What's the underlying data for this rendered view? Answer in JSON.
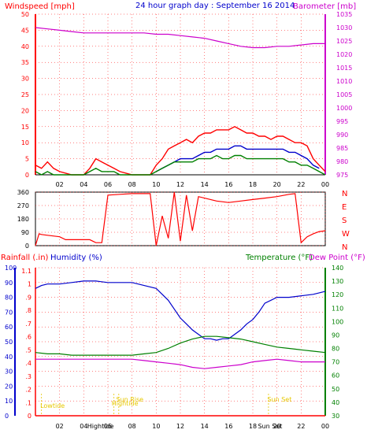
{
  "title": "24 hour graph day : September 16 2014",
  "colors": {
    "wind": "#ff0000",
    "gust_mid": "#0000cc",
    "wind_avg": "#008000",
    "baro": "#cc00cc",
    "dir": "#ff0000",
    "humidity": "#0000cc",
    "temperature": "#008000",
    "dewpoint": "#cc00cc",
    "rain": "#ff0000",
    "astro": "#e6c800",
    "grid": "#ff0000",
    "frame": "#000000"
  },
  "chart_data": [
    {
      "type": "line",
      "name": "wind-baro-panel",
      "left_label": "Windspeed [mph]",
      "right_label": "Barometer [mb]",
      "x_tick_labels": [
        "02",
        "04",
        "06",
        "08",
        "10",
        "12",
        "14",
        "16",
        "18",
        "20",
        "22",
        "00"
      ],
      "y_left_ticks": [
        "0",
        "5",
        "10",
        "15",
        "20",
        "25",
        "30",
        "35",
        "40",
        "45",
        "50"
      ],
      "y_right_ticks": [
        "975",
        "980",
        "985",
        "990",
        "995",
        "1000",
        "1005",
        "1010",
        "1015",
        "1020",
        "1025",
        "1030",
        "1035"
      ],
      "ylim_left": [
        0,
        50
      ],
      "ylim_right": [
        975,
        1035
      ],
      "series": [
        {
          "key": "wind_gust_upper",
          "x": [
            0,
            0.5,
            1,
            1.5,
            2,
            3,
            4,
            4.5,
            5,
            5.5,
            6,
            6.5,
            7,
            8,
            9,
            9.5,
            10,
            10.5,
            11,
            11.5,
            12,
            12.5,
            13,
            13.5,
            14,
            14.5,
            15,
            15.5,
            16,
            16.5,
            17,
            17.5,
            18,
            18.5,
            19,
            19.5,
            20,
            20.5,
            21,
            21.5,
            22,
            22.5,
            23,
            23.5,
            24
          ],
          "values": [
            3,
            2,
            4,
            2,
            1,
            0,
            0,
            2,
            5,
            4,
            3,
            2,
            1,
            0,
            0,
            0,
            3,
            5,
            8,
            9,
            10,
            11,
            10,
            12,
            13,
            13,
            14,
            14,
            14,
            15,
            14,
            13,
            13,
            12,
            12,
            11,
            12,
            12,
            11,
            10,
            10,
            9,
            5,
            3,
            1
          ]
        },
        {
          "key": "wind_mid",
          "x": [
            10,
            10.5,
            11,
            11.5,
            12,
            12.5,
            13,
            13.5,
            14,
            14.5,
            15,
            15.5,
            16,
            16.5,
            17,
            17.5,
            18,
            18.5,
            19,
            19.5,
            20,
            20.5,
            21,
            21.5,
            22,
            22.5,
            23,
            23.5
          ],
          "values": [
            1,
            2,
            3,
            4,
            5,
            5,
            5,
            6,
            7,
            7,
            8,
            8,
            8,
            9,
            9,
            8,
            8,
            8,
            8,
            8,
            8,
            8,
            7,
            7,
            6,
            5,
            3,
            2
          ]
        },
        {
          "key": "wind_avg",
          "x": [
            0,
            0.5,
            1,
            1.5,
            2,
            3,
            4,
            4.5,
            5,
            5.5,
            6,
            6.5,
            7,
            8,
            9,
            9.5,
            10,
            10.5,
            11,
            11.5,
            12,
            12.5,
            13,
            13.5,
            14,
            14.5,
            15,
            15.5,
            16,
            16.5,
            17,
            17.5,
            18,
            18.5,
            19,
            19.5,
            20,
            20.5,
            21,
            21.5,
            22,
            22.5,
            23,
            23.5,
            24
          ],
          "values": [
            1,
            0,
            1,
            0,
            0,
            0,
            0,
            1,
            2,
            1,
            1,
            1,
            0,
            0,
            0,
            0,
            1,
            2,
            3,
            4,
            4,
            4,
            4,
            5,
            5,
            5,
            6,
            5,
            5,
            6,
            6,
            5,
            5,
            5,
            5,
            5,
            5,
            5,
            4,
            4,
            3,
            3,
            2,
            1,
            0
          ]
        },
        {
          "key": "barometer",
          "axis": "right",
          "x": [
            0,
            1,
            2,
            3,
            4,
            5,
            6,
            7,
            8,
            9,
            10,
            11,
            12,
            13,
            14,
            15,
            16,
            17,
            18,
            19,
            20,
            21,
            22,
            23,
            24
          ],
          "values": [
            1030,
            1029.5,
            1029,
            1028.5,
            1028,
            1028,
            1028,
            1028,
            1028,
            1028,
            1027.5,
            1027.5,
            1027,
            1026.5,
            1026,
            1025,
            1024,
            1023,
            1022.5,
            1022.5,
            1023,
            1023,
            1023.5,
            1024,
            1024
          ]
        }
      ]
    },
    {
      "type": "line",
      "name": "wind-direction-panel",
      "y_left_ticks": [
        "0",
        "90",
        "180",
        "270",
        "360"
      ],
      "y_right_ticks": [
        "N",
        "W",
        "S",
        "E",
        "N"
      ],
      "ylim": [
        0,
        360
      ],
      "series": [
        {
          "key": "direction",
          "x": [
            0,
            0.3,
            0.5,
            1,
            2,
            2.5,
            3,
            4,
            4.5,
            5,
            5.5,
            6,
            7,
            8,
            8.5,
            9,
            9.5,
            10,
            10.5,
            11,
            11.5,
            12,
            12.5,
            13,
            13.5,
            14,
            15,
            16,
            17,
            18,
            19,
            20,
            21,
            21.5,
            22,
            22.5,
            23,
            23.5,
            24
          ],
          "values": [
            0,
            80,
            75,
            70,
            60,
            40,
            40,
            40,
            40,
            20,
            20,
            340,
            345,
            350,
            350,
            350,
            350,
            0,
            200,
            50,
            360,
            30,
            340,
            100,
            330,
            320,
            300,
            290,
            300,
            310,
            320,
            330,
            345,
            350,
            20,
            60,
            80,
            95,
            100
          ]
        }
      ]
    },
    {
      "type": "line",
      "name": "humidity-temperature-panel",
      "header_rain": "Rainfall (.in)",
      "header_humidity": "Humidity (%)",
      "header_temp": "Temperature (°F)",
      "header_dew": "Dew Point (°F)",
      "y_rain_ticks": [
        "0",
        ".1",
        ".2",
        ".3",
        ".4",
        ".5",
        ".6",
        ".7",
        ".8",
        ".9",
        "1",
        "1.1"
      ],
      "y_humidity_ticks": [
        "0",
        "10",
        "20",
        "30",
        "40",
        "50",
        "60",
        "70",
        "80",
        "90",
        "100"
      ],
      "y_temp_ticks": [
        "30",
        "40",
        "50",
        "60",
        "70",
        "80",
        "90",
        "100",
        "110",
        "120",
        "130",
        "140"
      ],
      "ylim_humidity": [
        0,
        100
      ],
      "ylim_temp": [
        30,
        140
      ],
      "x_tick_labels": [
        "02",
        "04",
        "06",
        "08",
        "10",
        "12",
        "14",
        "16",
        "18",
        "20",
        "22",
        "00"
      ],
      "series": [
        {
          "key": "humidity",
          "axis": "humidity",
          "x": [
            0,
            0.5,
            1,
            2,
            3,
            4,
            5,
            6,
            7,
            8,
            9,
            10,
            11,
            11.5,
            12,
            12.5,
            13,
            13.5,
            14,
            14.5,
            15,
            15.5,
            16,
            16.5,
            17,
            17.5,
            18,
            18.5,
            19,
            20,
            21,
            22,
            23,
            24
          ],
          "values": [
            86,
            88,
            89,
            89,
            90,
            91,
            91,
            90,
            90,
            90,
            88,
            86,
            78,
            72,
            66,
            62,
            58,
            55,
            52,
            52,
            51,
            52,
            52,
            55,
            58,
            62,
            65,
            70,
            76,
            80,
            80,
            81,
            82,
            84
          ]
        },
        {
          "key": "temperature",
          "axis": "temp",
          "x": [
            0,
            1,
            2,
            3,
            4,
            5,
            6,
            7,
            8,
            9,
            10,
            11,
            12,
            13,
            14,
            15,
            16,
            17,
            18,
            19,
            20,
            21,
            22,
            23,
            24
          ],
          "values": [
            77,
            76,
            76,
            75,
            75,
            75,
            75,
            75,
            75,
            76,
            77,
            80,
            84,
            87,
            89,
            89,
            88,
            87,
            85,
            83,
            81,
            80,
            79,
            78,
            77
          ]
        },
        {
          "key": "dewpoint",
          "axis": "temp",
          "x": [
            0,
            1,
            2,
            3,
            4,
            5,
            6,
            7,
            8,
            9,
            10,
            11,
            12,
            13,
            14,
            15,
            16,
            17,
            18,
            19,
            20,
            21,
            22,
            23,
            24
          ],
          "values": [
            72,
            72,
            72,
            72,
            72,
            72,
            72,
            72,
            72,
            71,
            70,
            69,
            68,
            66,
            65,
            66,
            67,
            68,
            70,
            71,
            72,
            71,
            70,
            70,
            70
          ]
        }
      ],
      "events": [
        {
          "label": "Lowtide",
          "x": 0.5,
          "label_y": 10
        },
        {
          "label": "Hightide",
          "x": 6.5,
          "label_y": 13
        },
        {
          "label": "Sun Rise",
          "x": 6.9,
          "label_y": 18
        },
        {
          "label": "Sun Set",
          "x": 19.3,
          "label_y": 18
        }
      ],
      "bottom_tick_labels": [
        "02",
        "04",
        "Hightide",
        "06",
        "08",
        "10",
        "12",
        "14",
        "16",
        "18",
        "Sun Set",
        "20",
        "22",
        "00"
      ]
    }
  ]
}
